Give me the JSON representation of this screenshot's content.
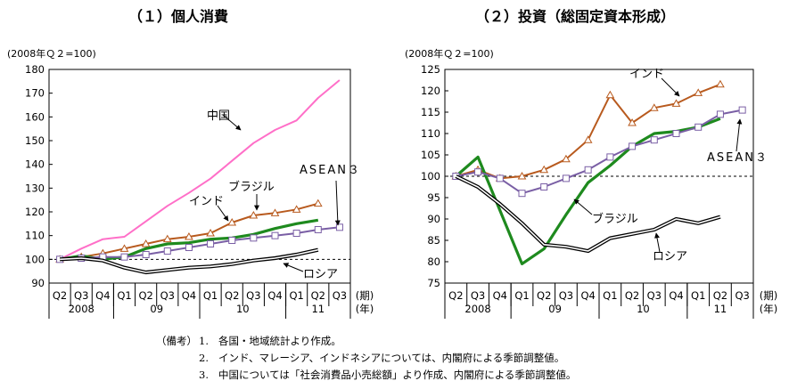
{
  "chart_data": [
    {
      "type": "line",
      "title": "（１）個人消費",
      "unit_label": "(2008年Ｑ２=100)",
      "ylim": [
        90,
        180
      ],
      "yticks": [
        90,
        100,
        110,
        120,
        130,
        140,
        150,
        160,
        170,
        180
      ],
      "baseline": 100,
      "grid": false,
      "categories": [
        "Q2",
        "Q3",
        "Q4",
        "Q1",
        "Q2",
        "Q3",
        "Q4",
        "Q1",
        "Q2",
        "Q3",
        "Q4",
        "Q1",
        "Q2",
        "Q3"
      ],
      "quarter_suffix": "(期)",
      "years": [
        {
          "label": "2008",
          "start": 0,
          "end": 2
        },
        {
          "label": "09",
          "start": 3,
          "end": 6
        },
        {
          "label": "10",
          "start": 7,
          "end": 10
        },
        {
          "label": "11",
          "start": 11,
          "end": 13
        }
      ],
      "year_suffix": "(年)",
      "series": [
        {
          "name": "中国",
          "color": "#ff6fc8",
          "style": "plain",
          "values": [
            100,
            104.5,
            108.5,
            109.5,
            116,
            122.5,
            128,
            134,
            141.5,
            149,
            154.5,
            158.5,
            168,
            175.5
          ]
        },
        {
          "name": "インド",
          "color": "#b85a1e",
          "style": "triangle",
          "values": [
            100,
            101,
            102.5,
            104.5,
            106.5,
            108.5,
            109.5,
            111,
            115.5,
            118.5,
            119.5,
            121,
            123.5,
            null
          ]
        },
        {
          "name": "ブラジル",
          "color": "#1e8a1e",
          "style": "thick",
          "values": [
            100,
            101.5,
            100,
            101,
            104.5,
            106.5,
            107,
            108.5,
            109,
            110.5,
            113,
            115,
            116.5,
            null
          ]
        },
        {
          "name": "ASEAN３",
          "color": "#7a5fa5",
          "style": "square",
          "values": [
            100,
            100.5,
            101,
            101,
            102,
            103.5,
            105,
            106.5,
            108,
            109,
            110,
            111,
            112.5,
            113.5
          ]
        },
        {
          "name": "ロシア",
          "color": "#000000",
          "style": "double",
          "values": [
            100,
            100.5,
            99.5,
            96.5,
            94.5,
            95.5,
            96.5,
            97,
            98,
            99.5,
            100.5,
            102,
            104,
            null
          ]
        }
      ]
    },
    {
      "type": "line",
      "title": "（２）投資（総固定資本形成）",
      "unit_label": "(2008年Ｑ２=100)",
      "ylim": [
        75,
        125
      ],
      "yticks": [
        75,
        80,
        85,
        90,
        95,
        100,
        105,
        110,
        115,
        120,
        125
      ],
      "baseline": 100,
      "grid": false,
      "categories": [
        "Q2",
        "Q3",
        "Q4",
        "Q1",
        "Q2",
        "Q3",
        "Q4",
        "Q1",
        "Q2",
        "Q3",
        "Q4",
        "Q1",
        "Q2",
        "Q3"
      ],
      "quarter_suffix": "(期)",
      "years": [
        {
          "label": "2008",
          "start": 0,
          "end": 2
        },
        {
          "label": "09",
          "start": 3,
          "end": 6
        },
        {
          "label": "10",
          "start": 7,
          "end": 10
        },
        {
          "label": "11",
          "start": 11,
          "end": 13
        }
      ],
      "year_suffix": "(年)",
      "series": [
        {
          "name": "インド",
          "color": "#b85a1e",
          "style": "triangle",
          "values": [
            100,
            101.5,
            99.5,
            100,
            101.5,
            104,
            108.5,
            119,
            112.5,
            116,
            117,
            119.5,
            121.5,
            null
          ]
        },
        {
          "name": "ブラジル",
          "color": "#1e8a1e",
          "style": "thick",
          "values": [
            100,
            104.5,
            null,
            79.5,
            83,
            91,
            98.5,
            102.5,
            107,
            110,
            110.5,
            111.5,
            113.5,
            null
          ]
        },
        {
          "name": "ASEAN３",
          "color": "#7a5fa5",
          "style": "square",
          "values": [
            100,
            101,
            99.5,
            96,
            97.5,
            99.5,
            101.5,
            104.5,
            107,
            108.5,
            110,
            111.5,
            114.5,
            115.5
          ]
        },
        {
          "name": "ロシア",
          "color": "#000000",
          "style": "double",
          "values": [
            100,
            97.5,
            93.5,
            89,
            84,
            83.5,
            82.5,
            85.5,
            86.5,
            87.5,
            90,
            89,
            90.5,
            null
          ]
        }
      ]
    }
  ],
  "notes": {
    "lead": "（備考）",
    "items": [
      {
        "num": "1.",
        "text": "各国・地域統計より作成。"
      },
      {
        "num": "2.",
        "text": "インド、マレーシア、インドネシアについては、内閣府による季節調整値。"
      },
      {
        "num": "3.",
        "text": "中国については「社会消費品小売総額」より作成、内閣府による季節調整値。"
      }
    ]
  }
}
